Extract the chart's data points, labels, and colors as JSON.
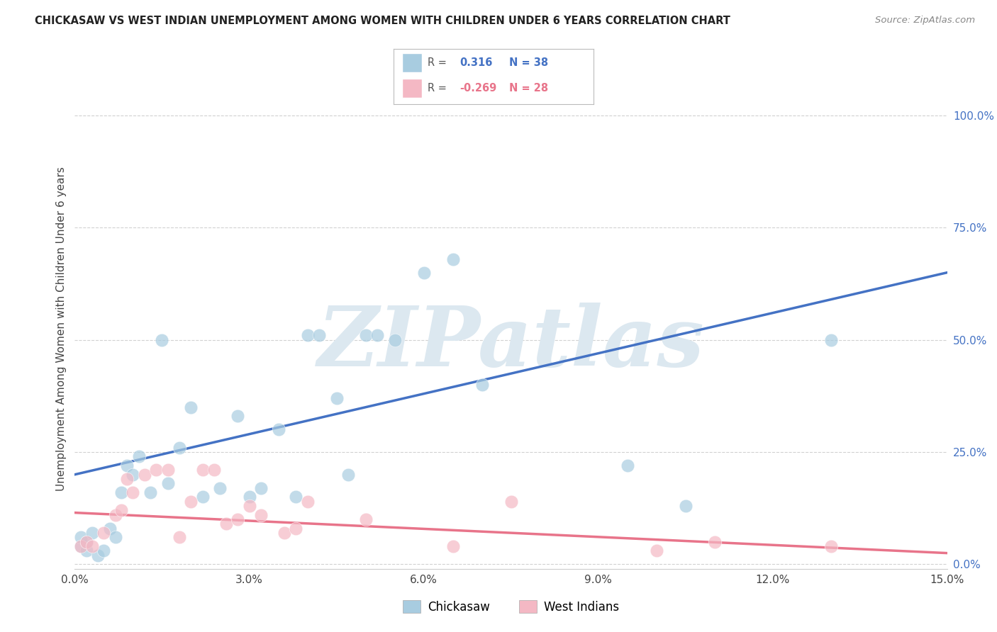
{
  "title": "CHICKASAW VS WEST INDIAN UNEMPLOYMENT AMONG WOMEN WITH CHILDREN UNDER 6 YEARS CORRELATION CHART",
  "source": "Source: ZipAtlas.com",
  "ylabel": "Unemployment Among Women with Children Under 6 years",
  "xlim": [
    0.0,
    0.15
  ],
  "ylim": [
    -0.01,
    1.06
  ],
  "xticks": [
    0.0,
    0.03,
    0.06,
    0.09,
    0.12,
    0.15
  ],
  "xticklabels": [
    "0.0%",
    "3.0%",
    "6.0%",
    "9.0%",
    "12.0%",
    "15.0%"
  ],
  "yticks_right": [
    0.0,
    0.25,
    0.5,
    0.75,
    1.0
  ],
  "yticklabels_right": [
    "0.0%",
    "25.0%",
    "50.0%",
    "75.0%",
    "100.0%"
  ],
  "chickasaw_color": "#a8cce0",
  "west_indian_color": "#f4b8c4",
  "chickasaw_line_color": "#4472c4",
  "west_indian_line_color": "#e8748a",
  "r_chickasaw": "0.316",
  "n_chickasaw": "38",
  "r_west_indian": "-0.269",
  "n_west_indian": "28",
  "chick_line_y0": 0.2,
  "chick_line_y1": 0.65,
  "wi_line_y0": 0.115,
  "wi_line_y1": 0.025,
  "chickasaw_x": [
    0.001,
    0.001,
    0.002,
    0.002,
    0.003,
    0.004,
    0.005,
    0.006,
    0.007,
    0.008,
    0.009,
    0.01,
    0.011,
    0.013,
    0.015,
    0.016,
    0.018,
    0.02,
    0.022,
    0.025,
    0.028,
    0.03,
    0.032,
    0.035,
    0.038,
    0.04,
    0.042,
    0.045,
    0.047,
    0.05,
    0.052,
    0.055,
    0.06,
    0.065,
    0.07,
    0.095,
    0.105,
    0.13
  ],
  "chickasaw_y": [
    0.04,
    0.06,
    0.03,
    0.05,
    0.07,
    0.02,
    0.03,
    0.08,
    0.06,
    0.16,
    0.22,
    0.2,
    0.24,
    0.16,
    0.5,
    0.18,
    0.26,
    0.35,
    0.15,
    0.17,
    0.33,
    0.15,
    0.17,
    0.3,
    0.15,
    0.51,
    0.51,
    0.37,
    0.2,
    0.51,
    0.51,
    0.5,
    0.65,
    0.68,
    0.4,
    0.22,
    0.13,
    0.5
  ],
  "west_indian_x": [
    0.001,
    0.002,
    0.003,
    0.005,
    0.007,
    0.008,
    0.009,
    0.01,
    0.012,
    0.014,
    0.016,
    0.018,
    0.02,
    0.022,
    0.024,
    0.026,
    0.028,
    0.03,
    0.032,
    0.036,
    0.038,
    0.04,
    0.05,
    0.065,
    0.075,
    0.1,
    0.11,
    0.13
  ],
  "west_indian_y": [
    0.04,
    0.05,
    0.04,
    0.07,
    0.11,
    0.12,
    0.19,
    0.16,
    0.2,
    0.21,
    0.21,
    0.06,
    0.14,
    0.21,
    0.21,
    0.09,
    0.1,
    0.13,
    0.11,
    0.07,
    0.08,
    0.14,
    0.1,
    0.04,
    0.14,
    0.03,
    0.05,
    0.04
  ],
  "background_color": "#ffffff",
  "grid_color": "#cccccc",
  "watermark": "ZIPatlas",
  "watermark_color": "#dce8f0"
}
